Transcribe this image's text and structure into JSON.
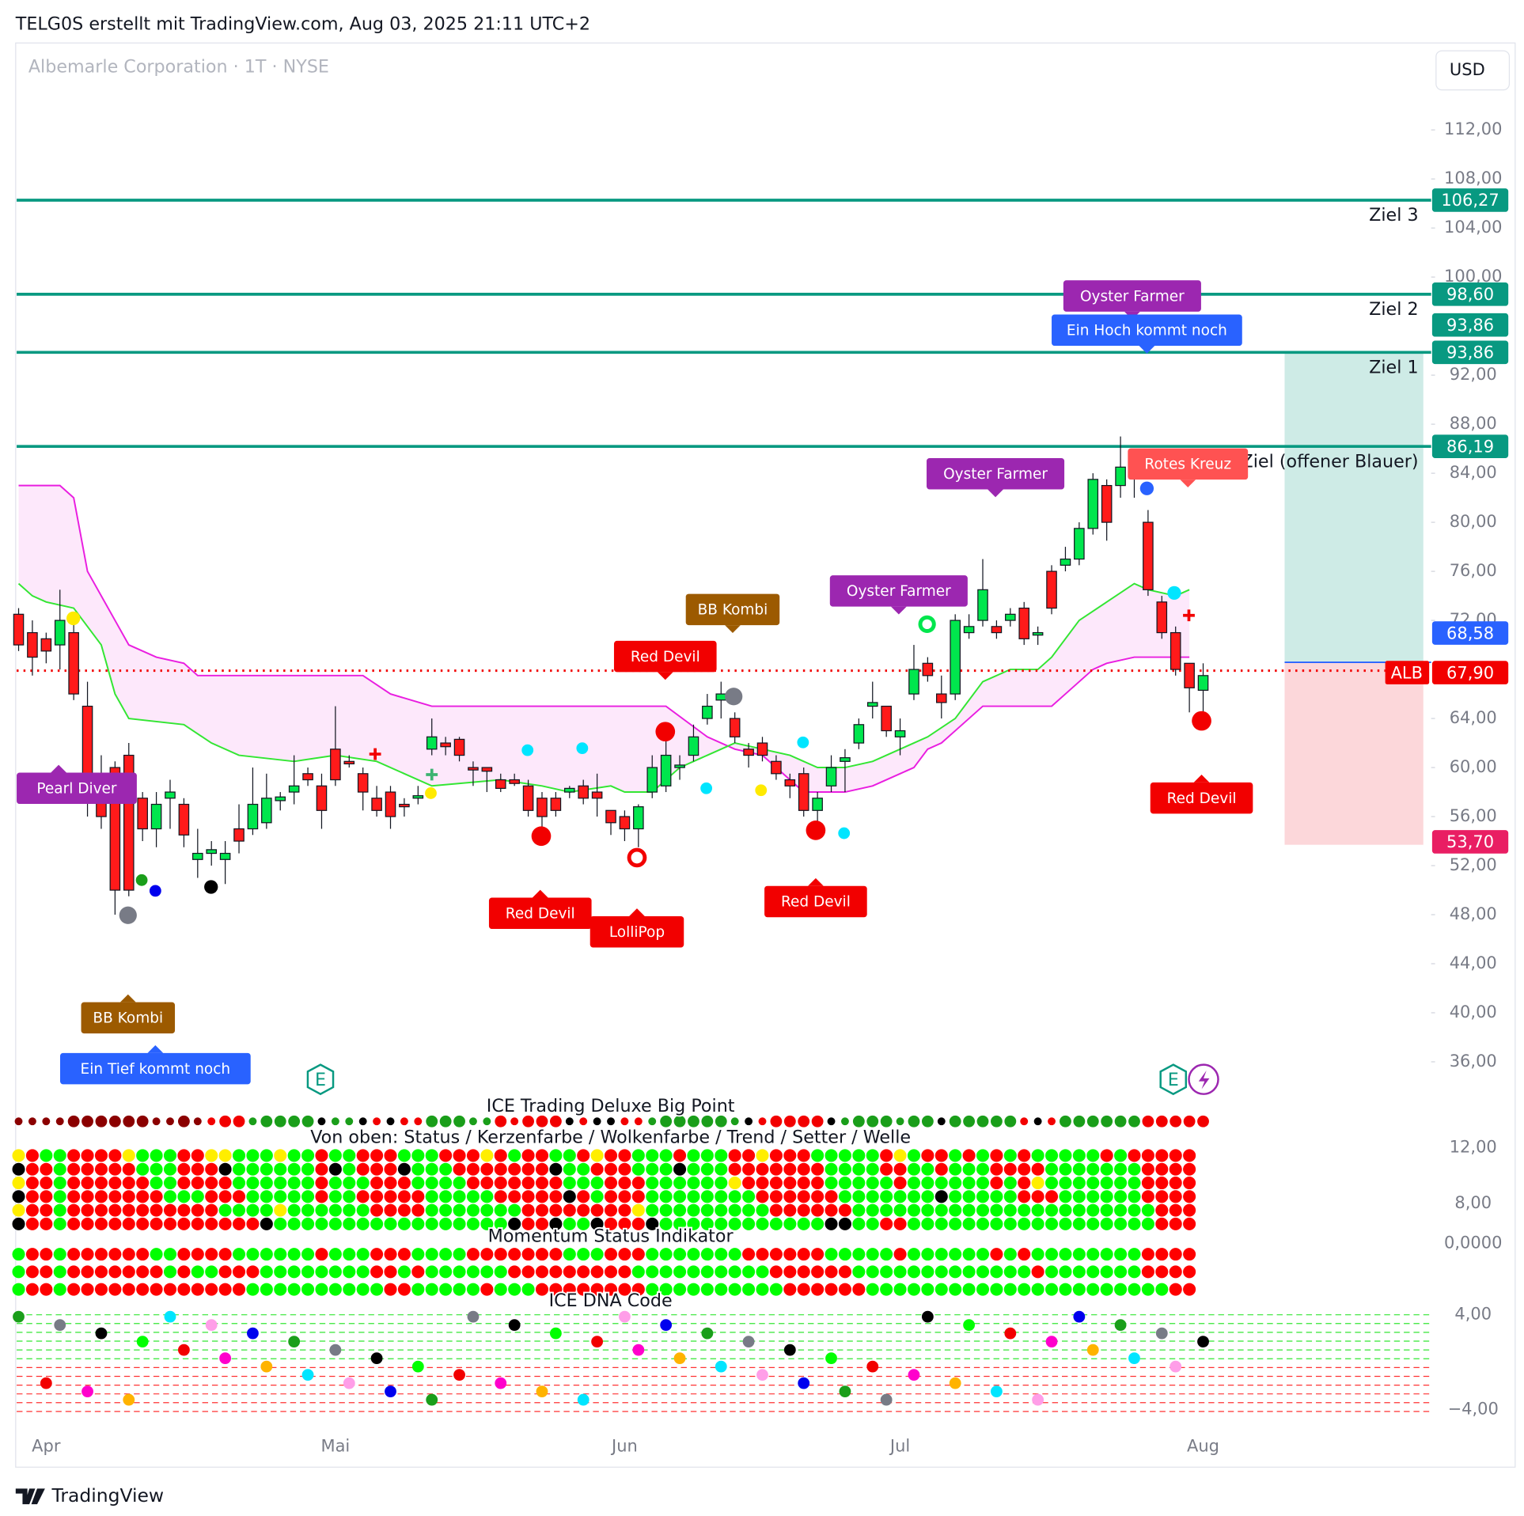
{
  "header": {
    "attribution": "TELG0S erstellt mit TradingView.com, Aug 03, 2025 21:11 UTC+2",
    "symbol": "Albemarle Corporation · 1T · NYSE",
    "currency": "USD",
    "footer": "TradingView"
  },
  "chart_data": {
    "type": "candlestick",
    "categories": [
      null,
      null,
      "Apr",
      null,
      null,
      null,
      null,
      null,
      null,
      null,
      null,
      null,
      null,
      null,
      null,
      null,
      null,
      null,
      null,
      null,
      null,
      null,
      null,
      "Mai",
      null,
      null,
      null,
      null,
      null,
      null,
      null,
      null,
      null,
      null,
      null,
      null,
      null,
      null,
      null,
      null,
      null,
      null,
      null,
      null,
      "Jun",
      null,
      null,
      null,
      null,
      null,
      null,
      null,
      null,
      null,
      null,
      null,
      null,
      null,
      null,
      null,
      null,
      null,
      null,
      null,
      "Jul",
      null,
      null,
      null,
      null,
      null,
      null,
      null,
      null,
      null,
      null,
      null,
      null,
      null,
      null,
      null,
      null,
      null,
      null,
      null,
      null,
      null,
      "Aug"
    ],
    "open": [
      72.5,
      71,
      70.5,
      70,
      71,
      65,
      59,
      60,
      61,
      57.5,
      55,
      57.5,
      57,
      52.5,
      53,
      52.5,
      55,
      55,
      55.5,
      57.3,
      58,
      59.5,
      58.5,
      61.5,
      60.5,
      59.5,
      57.5,
      58,
      57,
      57.5,
      61.5,
      62,
      62.3,
      60,
      60,
      59,
      59,
      58.5,
      57.5,
      57.5,
      58,
      58.5,
      58,
      56.5,
      56,
      55,
      58,
      58.5,
      60,
      61,
      64,
      65.5,
      64,
      61.5,
      62,
      60.5,
      59,
      59.5,
      56.5,
      58.5,
      60.5,
      62,
      65,
      65,
      62.5,
      66,
      68.5,
      66,
      66,
      71,
      72,
      71.5,
      72,
      73,
      70.8,
      76,
      76.5,
      77,
      79.5,
      83,
      83,
      85,
      80,
      73.5,
      71,
      68.5,
      66.3
    ],
    "high": [
      73,
      72,
      71,
      74.5,
      72,
      67,
      61,
      60.5,
      62,
      58,
      58,
      59,
      57.5,
      55,
      54,
      54,
      57,
      60,
      59.5,
      58,
      61,
      60,
      59.5,
      65,
      61,
      60,
      58.5,
      58.5,
      57.5,
      58.5,
      64,
      62.5,
      62.5,
      60.5,
      60,
      59.5,
      59.5,
      59,
      58,
      58,
      58.5,
      59,
      59.5,
      56.5,
      56.5,
      57,
      61,
      63.5,
      61,
      63.5,
      66,
      67,
      64.5,
      62,
      62.5,
      61,
      59.5,
      60,
      58,
      61,
      61.5,
      64,
      67,
      65,
      64,
      70,
      69,
      67.5,
      72.5,
      72.5,
      77,
      72,
      73,
      73.5,
      71.5,
      76.5,
      78,
      80,
      84,
      83.5,
      87,
      85.5,
      81,
      74,
      71.5,
      68.5,
      68.5
    ],
    "low": [
      69.5,
      67.5,
      68.5,
      68,
      65.5,
      56,
      55,
      48,
      49.5,
      54,
      53.5,
      55,
      53.5,
      51,
      52,
      50.5,
      53,
      54.5,
      55,
      56.5,
      57,
      58.5,
      55,
      58.5,
      60,
      56.5,
      56,
      55,
      56,
      57,
      61,
      61,
      60.5,
      58.5,
      58,
      58,
      58.5,
      56,
      55,
      56,
      57.5,
      57,
      56,
      54.5,
      54,
      53.5,
      57.5,
      58,
      59,
      60.5,
      63.5,
      64,
      62,
      60,
      60.5,
      59,
      57.5,
      56,
      55.5,
      58,
      58,
      61.5,
      64,
      62.5,
      61,
      65.5,
      67,
      64,
      65.5,
      70.5,
      71.5,
      70.5,
      71.5,
      70,
      70,
      72.5,
      76,
      76.5,
      79,
      78.5,
      82,
      82,
      74,
      70.5,
      67.5,
      64.5,
      64.5
    ],
    "close": [
      70,
      69,
      69.5,
      72,
      66,
      57.5,
      56,
      50,
      50,
      55,
      57,
      58,
      54.5,
      53,
      53.3,
      53,
      54,
      57,
      57.5,
      57.6,
      58.5,
      59,
      56.5,
      59,
      60.3,
      58,
      56.5,
      56,
      56.8,
      57.7,
      62.5,
      61.7,
      61,
      59.8,
      59.7,
      58.3,
      58.7,
      56.5,
      56,
      56.5,
      58.3,
      57.5,
      57.5,
      55.5,
      55,
      56.8,
      60,
      61,
      60.2,
      62.5,
      65,
      66,
      62.5,
      61,
      61,
      59.5,
      58.5,
      56.5,
      57.5,
      60,
      60.8,
      63.5,
      65.3,
      63,
      63,
      68,
      67.5,
      65.3,
      72,
      71.5,
      74.5,
      71,
      72.5,
      70.5,
      71,
      73,
      77,
      79.5,
      83.5,
      80,
      84.5,
      84,
      74.5,
      71,
      68,
      66.5,
      67.5
    ],
    "up_color": "#00e64d",
    "down_color": "#ff1a1a",
    "ylim": [
      34.17,
      119.01
    ],
    "yticks": [
      {
        "value": 112,
        "label": "112,00"
      },
      {
        "value": 108,
        "label": "108,00"
      },
      {
        "value": 104,
        "label": "104,00"
      },
      {
        "value": 100,
        "label": "100,00"
      },
      {
        "value": 92,
        "label": "92,00"
      },
      {
        "value": 88,
        "label": "88,00"
      },
      {
        "value": 84,
        "label": "84,00"
      },
      {
        "value": 80,
        "label": "80,00"
      },
      {
        "value": 76,
        "label": "76,00"
      },
      {
        "value": 72,
        "label": "72,00"
      },
      {
        "value": 64,
        "label": "64,00"
      },
      {
        "value": 60,
        "label": "60,00"
      },
      {
        "value": 56,
        "label": "56,00"
      },
      {
        "value": 52,
        "label": "52,00"
      },
      {
        "value": 48,
        "label": "48,00"
      },
      {
        "value": 44,
        "label": "44,00"
      },
      {
        "value": 40,
        "label": "40,00"
      },
      {
        "value": 36,
        "label": "36,00"
      }
    ],
    "bands": [
      {
        "color": "#e91ee0",
        "x": [
          0,
          3,
          4,
          5,
          7,
          8,
          10,
          12,
          13,
          25,
          27,
          30,
          47,
          50,
          52,
          54,
          56,
          57,
          60,
          62,
          63,
          64,
          65,
          66,
          67,
          68,
          69,
          70,
          75,
          76,
          78,
          79,
          81,
          85
        ],
        "values": [
          83,
          83,
          82,
          76,
          72,
          70,
          69,
          68.5,
          67.5,
          67.5,
          66,
          65,
          65,
          62.5,
          61.5,
          61,
          59,
          58,
          58,
          58.5,
          59,
          59.5,
          60,
          61.5,
          62,
          63,
          64,
          65,
          65,
          66,
          68,
          68.5,
          69,
          69
        ]
      },
      {
        "color": "#33e633",
        "x": [
          0,
          1,
          2,
          4,
          6,
          7,
          8,
          12,
          14,
          16,
          20,
          23,
          26,
          28,
          30,
          35,
          38,
          40,
          43,
          44,
          46,
          48,
          50,
          52,
          56,
          58,
          60,
          62,
          64,
          66,
          68,
          70,
          72,
          74,
          75,
          77,
          79,
          81,
          82,
          84,
          85
        ],
        "values": [
          75,
          74,
          73.5,
          73,
          70,
          66,
          64,
          63.5,
          62,
          61,
          60.5,
          61,
          60.5,
          59.5,
          58.5,
          59,
          58.5,
          58,
          58.5,
          58,
          58,
          60,
          61,
          62,
          61,
          60,
          60,
          60.5,
          61.5,
          62.5,
          64,
          67,
          68,
          68,
          69,
          72,
          73.5,
          75,
          74.5,
          74,
          74.5
        ]
      }
    ],
    "band_fill": "#fde8fb",
    "levels": [
      {
        "value": 106.27,
        "label": "106,27",
        "name": "Ziel 3"
      },
      {
        "value": 98.6,
        "label": "98,60",
        "name": "Ziel 2"
      },
      {
        "value": 93.86,
        "label": "93,86",
        "name": "Ziel 1"
      },
      {
        "value": 86.19,
        "label": "86,19",
        "name": "Ziel (offener Blauer)"
      }
    ],
    "level_color": "#089981",
    "position": {
      "target": {
        "value": 93.86,
        "label": "93,86"
      },
      "entry": {
        "value": 68.58,
        "label": "68,58"
      },
      "stop": {
        "value": 53.7,
        "label": "53,70"
      }
    },
    "last_price": {
      "value": 67.9,
      "label": "67,90",
      "symbol": "ALB"
    },
    "annotations": [
      {
        "text": "Pearl Diver",
        "color": "#9c27b0"
      },
      {
        "text": "BB Kombi",
        "color": "#9c5a00"
      },
      {
        "text": "Ein Tief kommt noch",
        "color": "#2962ff"
      },
      {
        "text": "Red Devil",
        "color": "#f20000"
      },
      {
        "text": "LolliPop",
        "color": "#f20000"
      },
      {
        "text": "Red Devil",
        "color": "#f20000"
      },
      {
        "text": "BB Kombi",
        "color": "#9c5a00"
      },
      {
        "text": "Red Devil",
        "color": "#f20000"
      },
      {
        "text": "Oyster Farmer",
        "color": "#9c27b0"
      },
      {
        "text": "Oyster Farmer",
        "color": "#9c27b0"
      },
      {
        "text": "Oyster Farmer",
        "color": "#9c27b0"
      },
      {
        "text": "Ein Hoch kommt noch",
        "color": "#2962ff"
      },
      {
        "text": "Rotes Kreuz",
        "color": "#ff5252"
      },
      {
        "text": "Red Devil",
        "color": "#f20000"
      }
    ],
    "events": [
      "E",
      "E"
    ],
    "panes": [
      {
        "title": "ICE Trading Deluxe Big Point"
      },
      {
        "title": "Von oben: Status / Kerzenfarbe / Wolkenfarbe / Trend / Setter / Welle",
        "ylim": [
          5.89,
          14.46
        ],
        "yticks": [
          {
            "value": 12,
            "label": "12,00"
          },
          {
            "value": 8,
            "label": "8,00"
          }
        ]
      },
      {
        "title": "Momentum Status Indikator",
        "ylim": [
          -5.36,
          1
        ],
        "yticks": [
          {
            "value": 0,
            "label": "0,0000"
          }
        ]
      },
      {
        "title": "ICE DNA Code",
        "ylim": [
          -5.4,
          5.15
        ],
        "yticks": [
          {
            "value": 4,
            "label": "4,00"
          },
          {
            "value": -4,
            "label": "−4,00"
          }
        ]
      }
    ]
  }
}
